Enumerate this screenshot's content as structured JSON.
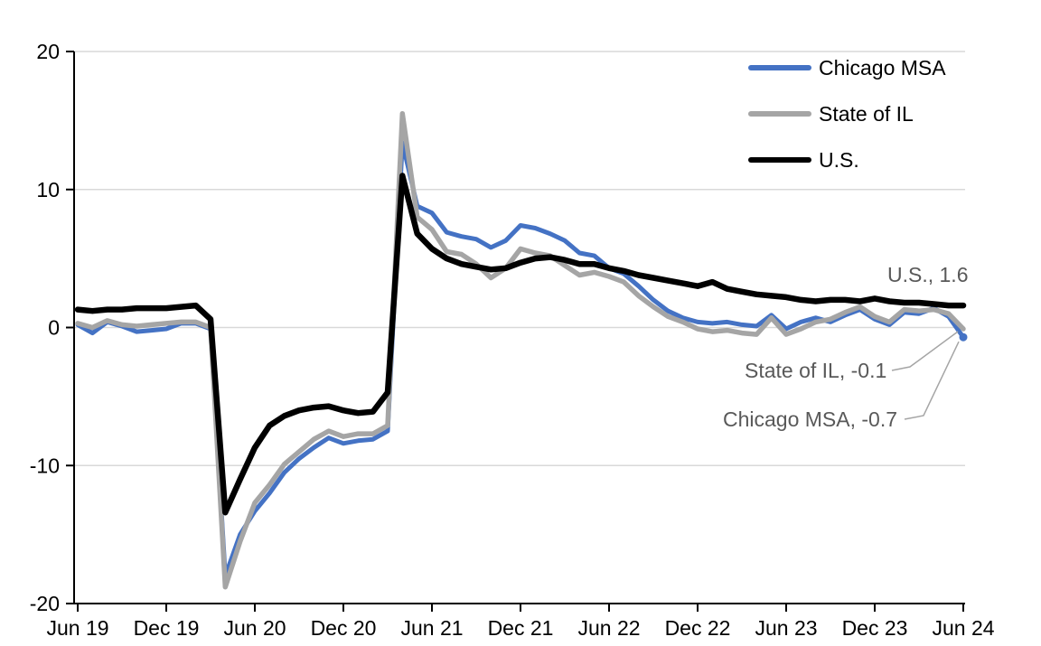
{
  "chart_data": {
    "type": "line",
    "title": "",
    "xlabel": "",
    "ylabel": "",
    "x_frequency": "monthly",
    "x_range": [
      "Jun 2019",
      "Jun 2024"
    ],
    "x_tick_labels": [
      "Jun 19",
      "Dec 19",
      "Jun 20",
      "Dec 20",
      "Jun 21",
      "Dec 21",
      "Jun 22",
      "Dec 22",
      "Jun 23",
      "Dec 23",
      "Jun 24"
    ],
    "y_ticks": [
      20,
      10,
      0,
      -10,
      -20
    ],
    "y_tick_labels": [
      "20",
      "10",
      "0",
      "-10",
      "-20"
    ],
    "gridlines_at": [
      20,
      10,
      0,
      -10
    ],
    "ylim": [
      -20,
      20
    ],
    "grid": "horizontal-only",
    "legend_position": "top-right-inside",
    "series": [
      {
        "key": "chicago-msa",
        "name": "Chicago MSA",
        "color": "#4472C4",
        "end_marker": true,
        "end_value": -0.7,
        "values": [
          0.2,
          -0.4,
          0.4,
          0.1,
          -0.3,
          -0.2,
          -0.1,
          0.3,
          0.3,
          -0.1,
          -18.0,
          -15.0,
          -13.3,
          -12.0,
          -10.5,
          -9.5,
          -8.7,
          -8.0,
          -8.4,
          -8.2,
          -8.1,
          -7.5,
          13.4,
          8.8,
          8.3,
          6.9,
          6.6,
          6.4,
          5.8,
          6.3,
          7.4,
          7.2,
          6.8,
          6.3,
          5.4,
          5.2,
          4.3,
          3.9,
          3.0,
          2.0,
          1.2,
          0.7,
          0.4,
          0.3,
          0.4,
          0.2,
          0.1,
          0.9,
          -0.1,
          0.4,
          0.7,
          0.4,
          0.9,
          1.3,
          0.6,
          0.2,
          1.1,
          1.0,
          1.4,
          0.8,
          -0.7
        ]
      },
      {
        "key": "state-of-il",
        "name": "State of IL",
        "color": "#A5A5A5",
        "end_marker": false,
        "end_value": -0.1,
        "values": [
          0.3,
          0.0,
          0.5,
          0.2,
          0.1,
          0.2,
          0.3,
          0.4,
          0.4,
          0.0,
          -18.8,
          -15.5,
          -12.7,
          -11.4,
          -9.9,
          -9.0,
          -8.1,
          -7.5,
          -7.9,
          -7.7,
          -7.7,
          -7.1,
          15.5,
          8.0,
          7.1,
          5.5,
          5.3,
          4.6,
          3.6,
          4.3,
          5.7,
          5.4,
          5.2,
          4.5,
          3.8,
          4.0,
          3.7,
          3.3,
          2.3,
          1.5,
          0.8,
          0.4,
          -0.1,
          -0.3,
          -0.2,
          -0.4,
          -0.5,
          0.7,
          -0.5,
          -0.1,
          0.4,
          0.6,
          1.1,
          1.5,
          0.8,
          0.4,
          1.3,
          1.2,
          1.3,
          1.0,
          -0.1
        ]
      },
      {
        "key": "us",
        "name": "U.S.",
        "color": "#000000",
        "end_marker": false,
        "end_value": 1.6,
        "values": [
          1.3,
          1.2,
          1.3,
          1.3,
          1.4,
          1.4,
          1.4,
          1.5,
          1.6,
          0.6,
          -13.4,
          -11.0,
          -8.7,
          -7.1,
          -6.4,
          -6.0,
          -5.8,
          -5.7,
          -6.0,
          -6.2,
          -6.1,
          -4.7,
          11.0,
          6.8,
          5.7,
          5.0,
          4.6,
          4.4,
          4.2,
          4.3,
          4.7,
          5.0,
          5.1,
          4.9,
          4.6,
          4.6,
          4.3,
          4.1,
          3.8,
          3.6,
          3.4,
          3.2,
          3.0,
          3.3,
          2.8,
          2.6,
          2.4,
          2.3,
          2.2,
          2.0,
          1.9,
          2.0,
          2.0,
          1.9,
          2.1,
          1.9,
          1.8,
          1.8,
          1.7,
          1.6,
          1.6
        ]
      }
    ]
  },
  "legend": {
    "items": [
      {
        "label": "Chicago MSA",
        "color": "#4472C4"
      },
      {
        "label": "State of IL",
        "color": "#A5A5A5"
      },
      {
        "label": "U.S.",
        "color": "#000000"
      }
    ]
  },
  "annotations": {
    "us": "U.S., 1.6",
    "state_il": "State of IL, -0.1",
    "chicago_msa": "Chicago MSA, -0.7"
  },
  "colors": {
    "grid": "#D9D9D9",
    "axis": "#000000",
    "annotation_text": "#595959",
    "leader_line": "#A5A5A5",
    "background": "#FFFFFF"
  }
}
